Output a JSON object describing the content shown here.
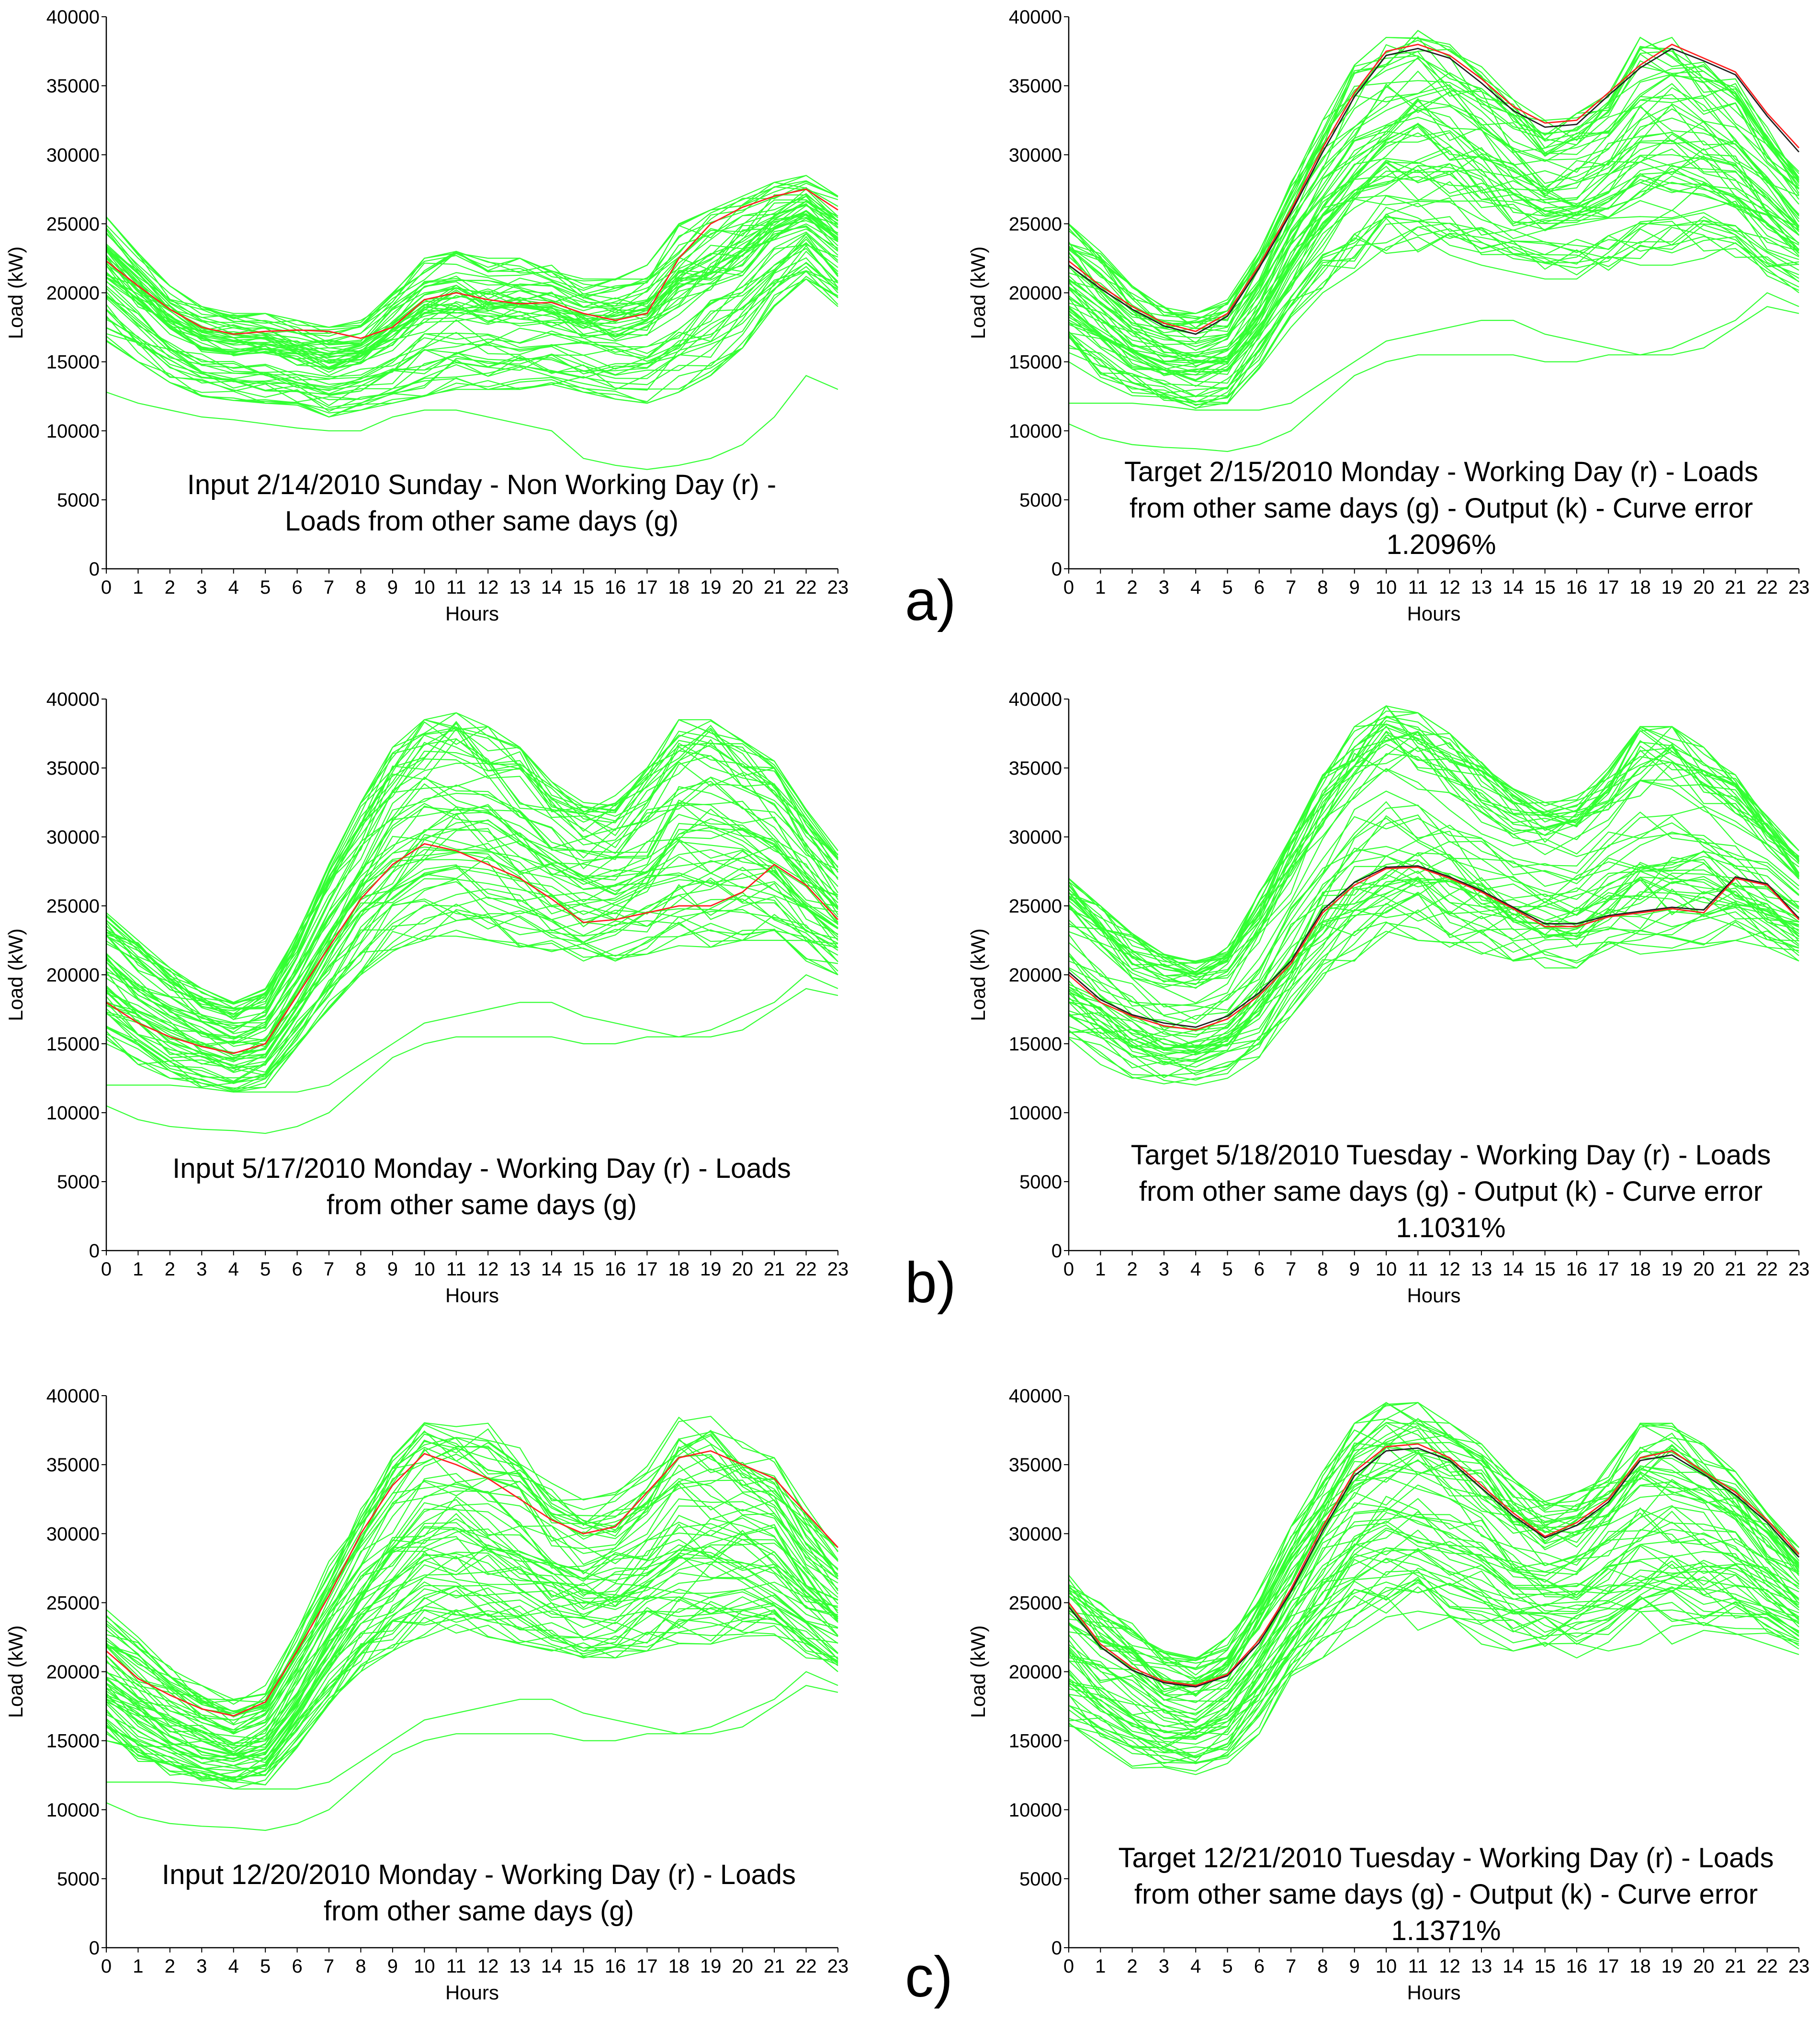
{
  "colors": {
    "bundle": "#33ff33",
    "red": "#ff2020",
    "black": "#202020",
    "axis": "#000000"
  },
  "common": {
    "xlabel": "Hours",
    "ylabel": "Load (kW)",
    "xticks": [
      "0",
      "1",
      "2",
      "3",
      "4",
      "5",
      "6",
      "7",
      "8",
      "9",
      "10",
      "11",
      "12",
      "13",
      "14",
      "15",
      "16",
      "17",
      "18",
      "19",
      "20",
      "21",
      "22",
      "23"
    ],
    "yticks": [
      "0",
      "5000",
      "10000",
      "15000",
      "20000",
      "25000",
      "30000",
      "35000",
      "40000"
    ]
  },
  "panel_labels": [
    "a)",
    "b)",
    "c)"
  ],
  "chart_data": [
    {
      "id": "a-input",
      "type": "line",
      "caption_lines": [
        "Input 2/14/2010 Sunday - Non Working Day (r) -",
        "Loads from other same days (g)"
      ],
      "xlabel": "Hours",
      "ylabel": "Load (kW)",
      "xlim": [
        0,
        23
      ],
      "ylim": [
        0,
        40000
      ],
      "bundle": {
        "count": 60,
        "min_profile": [
          16500,
          15000,
          13500,
          12500,
          12200,
          12000,
          11500,
          11000,
          11500,
          12000,
          12500,
          13000,
          13000,
          13000,
          13000,
          12800,
          12300,
          12000,
          12800,
          14000,
          16000,
          19000,
          21000,
          19000
        ],
        "max_profile": [
          25500,
          23000,
          20500,
          19000,
          18500,
          18500,
          18000,
          17500,
          18000,
          20000,
          22500,
          23000,
          22500,
          22500,
          22000,
          21000,
          21000,
          22000,
          25000,
          26000,
          27000,
          28000,
          28500,
          27000
        ]
      },
      "extra_curves": [
        [
          12800,
          12000,
          11500,
          11000,
          10800,
          10500,
          10200,
          10000,
          10000,
          11000,
          11500,
          11500,
          11000,
          10500,
          10000,
          8000,
          7500,
          7200,
          7500,
          8000,
          9000,
          11000,
          14000,
          13000
        ]
      ],
      "series": [
        {
          "name": "Input (r)",
          "color": "red",
          "values": [
            22300,
            20500,
            18800,
            17500,
            17000,
            17200,
            17300,
            17200,
            16700,
            17500,
            19500,
            20000,
            19500,
            19200,
            19300,
            18500,
            18000,
            18500,
            22500,
            25000,
            26200,
            27000,
            27500,
            26000
          ]
        }
      ]
    },
    {
      "id": "a-target",
      "type": "line",
      "caption_lines": [
        "Target 2/15/2010 Monday - Working Day (r) - Loads",
        "from other same days (g) - Output (k) - Curve error",
        "1.2096%"
      ],
      "xlabel": "Hours",
      "ylabel": "Load (kW)",
      "xlim": [
        0,
        23
      ],
      "ylim": [
        0,
        40000
      ],
      "bundle": {
        "count": 60,
        "min_profile": [
          15000,
          13500,
          12500,
          11800,
          11500,
          11800,
          14500,
          17500,
          20000,
          21500,
          22500,
          22800,
          22500,
          22000,
          21500,
          21000,
          21000,
          21500,
          22000,
          22000,
          22500,
          22500,
          21000,
          20000
        ],
        "max_profile": [
          25000,
          23000,
          20500,
          19000,
          18500,
          19500,
          23000,
          28000,
          32500,
          36500,
          38500,
          39000,
          38000,
          36500,
          34000,
          32500,
          33000,
          35000,
          38500,
          38500,
          37000,
          35500,
          32000,
          29000
        ]
      },
      "extra_curves": [
        [
          10500,
          9500,
          9000,
          8800,
          8700,
          8500,
          9000,
          10000,
          12000,
          14000,
          15000,
          15500,
          15500,
          15500,
          15500,
          15000,
          15000,
          15500,
          15500,
          16000,
          17000,
          18000,
          20000,
          19000
        ],
        [
          12000,
          12000,
          12000,
          11800,
          11500,
          11500,
          11500,
          12000,
          13500,
          15000,
          16500,
          17000,
          17500,
          18000,
          18000,
          17000,
          16500,
          16000,
          15500,
          15500,
          16000,
          17500,
          19000,
          18500
        ]
      ],
      "series": [
        {
          "name": "Target (r)",
          "color": "red",
          "values": [
            22300,
            20500,
            19000,
            17800,
            17200,
            18500,
            22000,
            26000,
            30500,
            34500,
            37500,
            38000,
            37200,
            35500,
            33500,
            32300,
            32500,
            34500,
            36500,
            38000,
            37000,
            36000,
            33000,
            30500
          ]
        },
        {
          "name": "Output (k)",
          "color": "black",
          "values": [
            22000,
            20300,
            18800,
            17600,
            17000,
            18300,
            21800,
            25800,
            30200,
            34200,
            37200,
            37700,
            37000,
            35200,
            33200,
            32000,
            32200,
            34300,
            36300,
            37700,
            36800,
            35800,
            32800,
            30200
          ]
        }
      ]
    },
    {
      "id": "b-input",
      "type": "line",
      "caption_lines": [
        "Input 5/17/2010 Monday - Working Day (r) - Loads",
        "from other same days (g)"
      ],
      "xlabel": "Hours",
      "ylabel": "Load (kW)",
      "xlim": [
        0,
        23
      ],
      "ylim": [
        0,
        40000
      ],
      "bundle": {
        "count": 60,
        "min_profile": [
          15000,
          13500,
          12500,
          11800,
          11500,
          11800,
          14500,
          17500,
          20000,
          21500,
          22500,
          22800,
          22500,
          22000,
          21500,
          21000,
          21000,
          21500,
          22000,
          22000,
          22500,
          22500,
          21000,
          20000
        ],
        "max_profile": [
          24500,
          22500,
          20500,
          19000,
          18000,
          19000,
          23000,
          28000,
          32500,
          36500,
          38500,
          39000,
          38000,
          36500,
          34000,
          32500,
          33000,
          35000,
          38500,
          38500,
          37000,
          35500,
          32000,
          29000
        ]
      },
      "extra_curves": [
        [
          10500,
          9500,
          9000,
          8800,
          8700,
          8500,
          9000,
          10000,
          12000,
          14000,
          15000,
          15500,
          15500,
          15500,
          15500,
          15000,
          15000,
          15500,
          15500,
          16000,
          17000,
          18000,
          20000,
          19000
        ],
        [
          12000,
          12000,
          12000,
          11800,
          11500,
          11500,
          11500,
          12000,
          13500,
          15000,
          16500,
          17000,
          17500,
          18000,
          18000,
          17000,
          16500,
          16000,
          15500,
          15500,
          16000,
          17500,
          19000,
          18500
        ]
      ],
      "series": [
        {
          "name": "Input (r)",
          "color": "red",
          "values": [
            18000,
            16500,
            15500,
            14800,
            14300,
            15000,
            18500,
            22000,
            25500,
            28000,
            29500,
            29000,
            28000,
            27000,
            25500,
            23800,
            24000,
            24500,
            25000,
            25000,
            26000,
            28000,
            26500,
            24000
          ]
        }
      ]
    },
    {
      "id": "b-target",
      "type": "line",
      "caption_lines": [
        "Target 5/18/2010 Tuesday - Working Day (r) - Loads",
        "from other same days (g) - Output (k) - Curve error",
        "1.1031%"
      ],
      "xlabel": "Hours",
      "ylabel": "Load (kW)",
      "xlim": [
        0,
        23
      ],
      "ylim": [
        0,
        40000
      ],
      "bundle": {
        "count": 60,
        "min_profile": [
          15000,
          13500,
          12500,
          12000,
          12000,
          12500,
          14000,
          17000,
          19500,
          21000,
          22000,
          22500,
          22000,
          21500,
          21000,
          20500,
          20500,
          21000,
          21500,
          21500,
          22000,
          22500,
          22000,
          21000
        ],
        "max_profile": [
          27000,
          25000,
          23000,
          21500,
          21000,
          22000,
          26000,
          30000,
          34500,
          38000,
          39500,
          39000,
          37500,
          35500,
          33500,
          32500,
          33000,
          35000,
          38000,
          38000,
          36500,
          34500,
          31500,
          29000
        ]
      },
      "extra_curves": [],
      "series": [
        {
          "name": "Target (r)",
          "color": "red",
          "values": [
            20000,
            18000,
            17000,
            16300,
            16000,
            16800,
            18500,
            20800,
            24500,
            26500,
            27700,
            27800,
            27000,
            26000,
            24800,
            23500,
            23500,
            24200,
            24500,
            24800,
            24500,
            27000,
            26500,
            24000
          ]
        },
        {
          "name": "Output (k)",
          "color": "black",
          "values": [
            20200,
            18200,
            17100,
            16500,
            16200,
            17000,
            18700,
            21000,
            24700,
            26700,
            27800,
            27900,
            27100,
            26100,
            24900,
            23700,
            23700,
            24300,
            24600,
            24900,
            24700,
            27100,
            26600,
            24100
          ]
        }
      ]
    },
    {
      "id": "c-input",
      "type": "line",
      "caption_lines": [
        "Input 12/20/2010 Monday - Working Day (r) - Loads",
        "from other same days (g)"
      ],
      "xlabel": "Hours",
      "ylabel": "Load (kW)",
      "xlim": [
        0,
        23
      ],
      "ylim": [
        0,
        40000
      ],
      "bundle": {
        "count": 60,
        "min_profile": [
          15000,
          13500,
          12500,
          11800,
          11500,
          11800,
          14500,
          17500,
          20000,
          21500,
          22500,
          22800,
          22500,
          22000,
          21500,
          21000,
          21000,
          21500,
          22000,
          22000,
          22500,
          22500,
          21000,
          20000
        ],
        "max_profile": [
          24500,
          22500,
          20500,
          19000,
          18000,
          19000,
          23000,
          28000,
          32500,
          36500,
          39000,
          39000,
          38000,
          36500,
          34000,
          32500,
          33000,
          35000,
          38500,
          38500,
          37000,
          35500,
          32000,
          29000
        ]
      },
      "extra_curves": [
        [
          10500,
          9500,
          9000,
          8800,
          8700,
          8500,
          9000,
          10000,
          12000,
          14000,
          15000,
          15500,
          15500,
          15500,
          15500,
          15000,
          15000,
          15500,
          15500,
          16000,
          17000,
          18000,
          20000,
          19000
        ],
        [
          12000,
          12000,
          12000,
          11800,
          11500,
          11500,
          11500,
          12000,
          13500,
          15000,
          16500,
          17000,
          17500,
          18000,
          18000,
          17000,
          16500,
          16000,
          15500,
          15500,
          16000,
          17500,
          19000,
          18500
        ]
      ],
      "series": [
        {
          "name": "Input (r)",
          "color": "red",
          "values": [
            21500,
            19500,
            18300,
            17300,
            16800,
            17800,
            21500,
            25500,
            30000,
            33500,
            35800,
            35000,
            34000,
            32500,
            31000,
            30000,
            30500,
            33000,
            35500,
            36000,
            35000,
            34000,
            31500,
            29000
          ]
        }
      ]
    },
    {
      "id": "c-target",
      "type": "line",
      "caption_lines": [
        "Target 12/21/2010 Tuesday - Working Day (r) - Loads",
        "from other same days (g) - Output (k) - Curve error",
        "1.1371%"
      ],
      "xlabel": "Hours",
      "ylabel": "Load (kW)",
      "xlim": [
        0,
        23
      ],
      "ylim": [
        0,
        40000
      ],
      "bundle": {
        "count": 60,
        "min_profile": [
          15500,
          14000,
          13000,
          12500,
          12300,
          13000,
          15500,
          18500,
          21000,
          22500,
          23000,
          23000,
          22500,
          22000,
          21500,
          21000,
          21000,
          21500,
          22000,
          22000,
          22500,
          22500,
          22000,
          21000
        ],
        "max_profile": [
          27000,
          25000,
          23500,
          21500,
          21000,
          22500,
          26000,
          30500,
          34500,
          38000,
          39500,
          39500,
          38000,
          36500,
          34000,
          32500,
          33000,
          35000,
          38000,
          38000,
          36500,
          34500,
          31500,
          29000
        ]
      },
      "extra_curves": [],
      "series": [
        {
          "name": "Target (r)",
          "color": "red",
          "values": [
            25000,
            22000,
            20300,
            19300,
            19000,
            19800,
            22300,
            26000,
            30500,
            34500,
            36300,
            36500,
            35500,
            33500,
            31500,
            29800,
            30800,
            32500,
            35500,
            36000,
            34500,
            33000,
            31000,
            28500
          ]
        },
        {
          "name": "Output (k)",
          "color": "black",
          "values": [
            24700,
            21800,
            20100,
            19200,
            18900,
            19700,
            22100,
            25800,
            30200,
            34200,
            36000,
            36200,
            35300,
            33300,
            31300,
            29700,
            30600,
            32300,
            35300,
            35700,
            34300,
            32800,
            30800,
            28300
          ]
        }
      ]
    }
  ]
}
